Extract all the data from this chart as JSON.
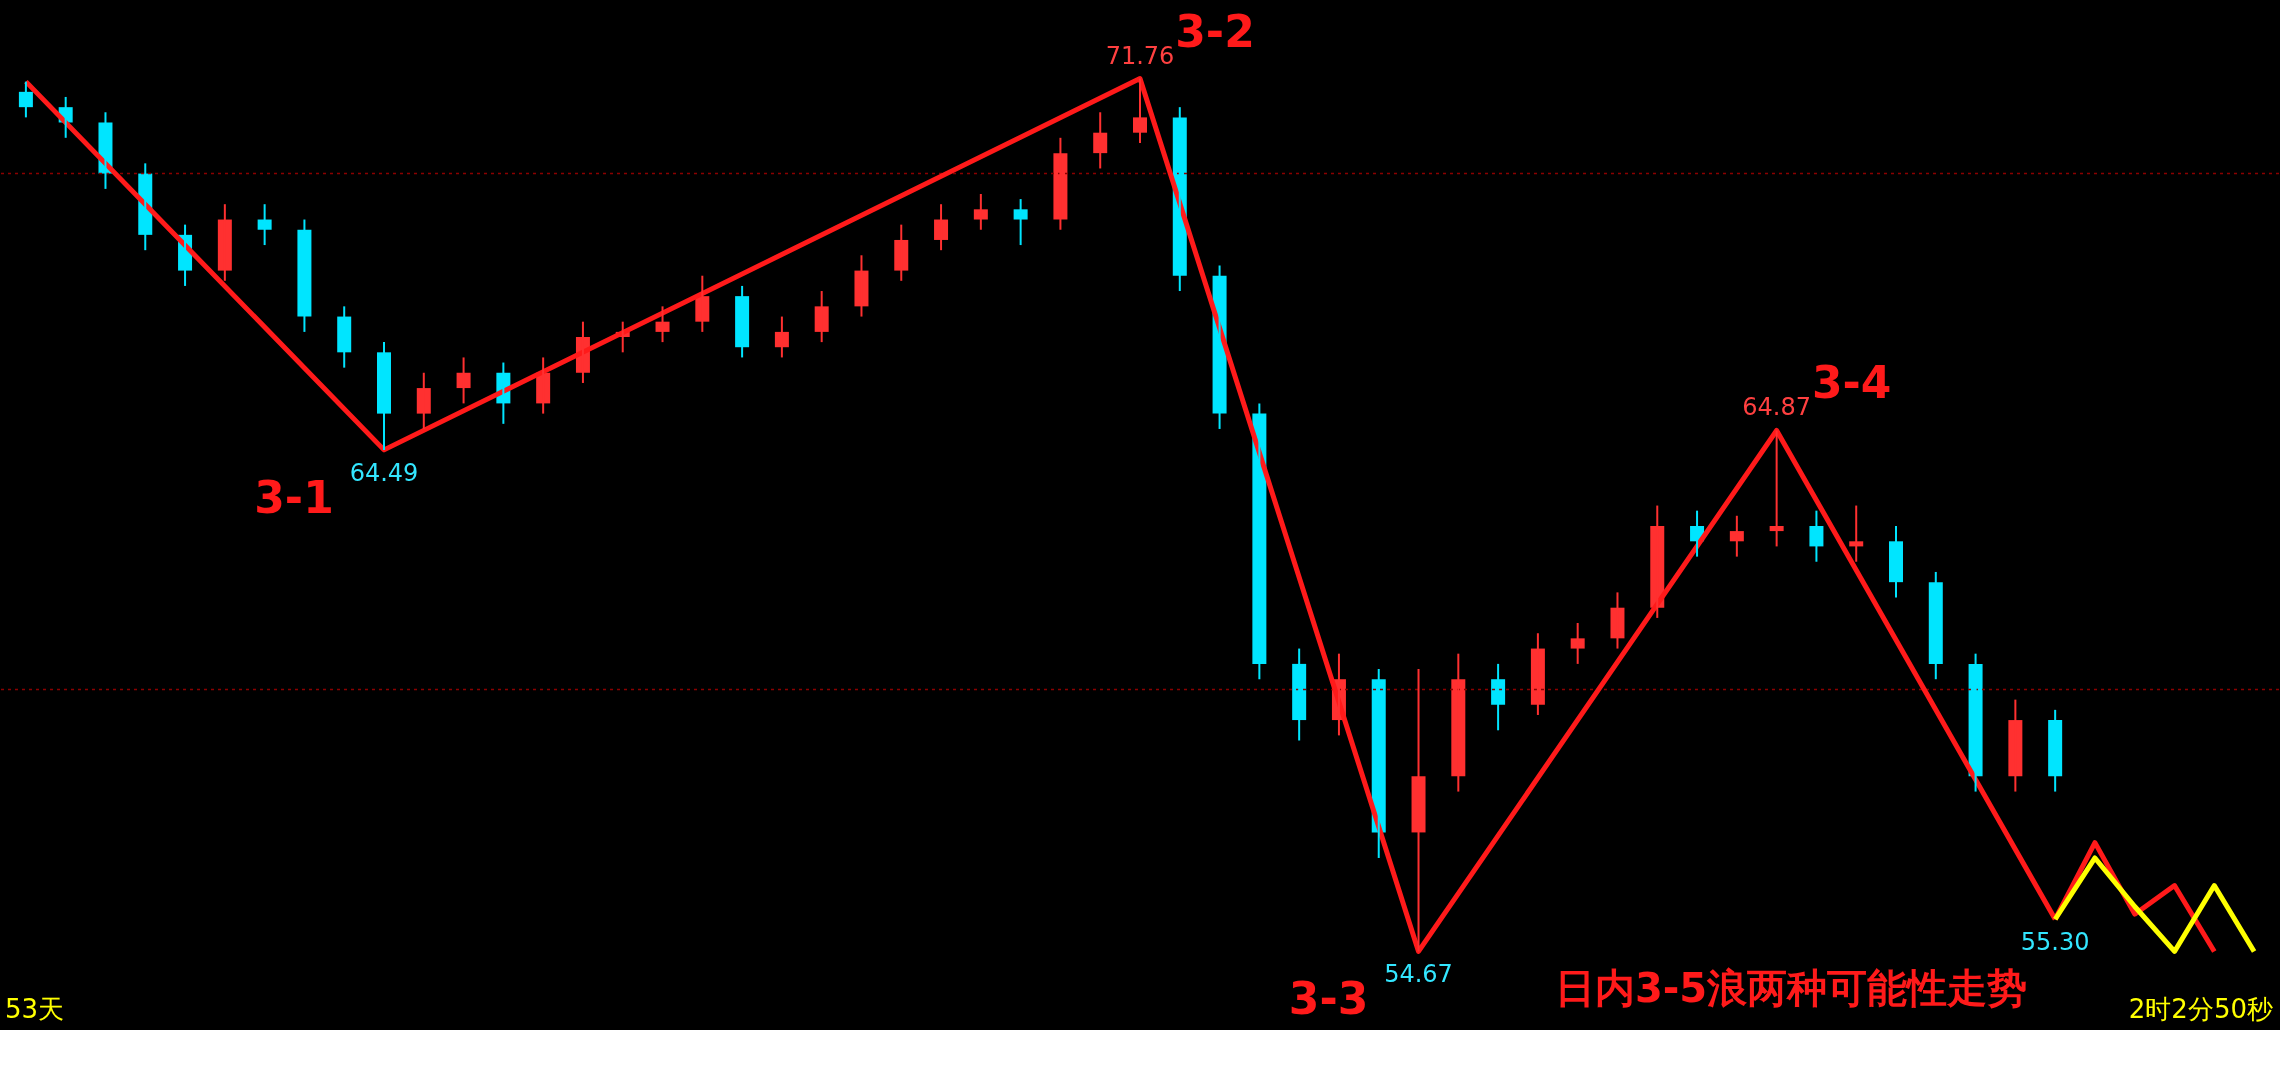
{
  "chart_data": {
    "type": "candlestick",
    "categories": [
      null,
      null,
      null,
      null,
      null,
      null,
      null,
      null,
      null,
      null,
      null,
      null,
      null,
      null,
      null,
      null,
      null,
      null,
      null,
      null,
      null,
      null,
      null,
      null,
      null,
      null,
      null,
      null,
      null,
      null,
      null,
      null,
      null,
      null,
      null,
      null,
      null,
      null,
      null,
      null,
      null,
      null,
      null,
      null,
      null,
      null,
      null,
      null,
      null,
      null,
      null,
      null,
      null,
      null,
      null,
      null,
      null
    ],
    "ohlc": [
      [
        71.5,
        71.7,
        71.0,
        71.2
      ],
      [
        71.2,
        71.4,
        70.6,
        70.9
      ],
      [
        70.9,
        71.1,
        69.6,
        69.9
      ],
      [
        69.9,
        70.1,
        68.4,
        68.7
      ],
      [
        68.7,
        68.9,
        67.7,
        68.0
      ],
      [
        68.0,
        69.3,
        67.8,
        69.0
      ],
      [
        69.0,
        69.3,
        68.5,
        68.8
      ],
      [
        68.8,
        69.0,
        66.8,
        67.1
      ],
      [
        67.1,
        67.3,
        66.1,
        66.4
      ],
      [
        66.4,
        66.6,
        64.49,
        65.2
      ],
      [
        65.2,
        66.0,
        64.9,
        65.7
      ],
      [
        65.7,
        66.3,
        65.4,
        66.0
      ],
      [
        66.0,
        66.2,
        65.0,
        65.4
      ],
      [
        65.4,
        66.3,
        65.2,
        66.0
      ],
      [
        66.0,
        67.0,
        65.8,
        66.7
      ],
      [
        66.7,
        67.0,
        66.4,
        66.8
      ],
      [
        66.8,
        67.3,
        66.6,
        67.0
      ],
      [
        67.0,
        67.9,
        66.8,
        67.5
      ],
      [
        67.5,
        67.7,
        66.3,
        66.5
      ],
      [
        66.5,
        67.1,
        66.3,
        66.8
      ],
      [
        66.8,
        67.6,
        66.6,
        67.3
      ],
      [
        67.3,
        68.3,
        67.1,
        68.0
      ],
      [
        68.0,
        68.9,
        67.8,
        68.6
      ],
      [
        68.6,
        69.3,
        68.4,
        69.0
      ],
      [
        69.0,
        69.5,
        68.8,
        69.2
      ],
      [
        69.2,
        69.4,
        68.5,
        69.0
      ],
      [
        69.0,
        70.6,
        68.8,
        70.3
      ],
      [
        70.3,
        71.1,
        70.0,
        70.7
      ],
      [
        70.7,
        71.76,
        70.5,
        71.0
      ],
      [
        71.0,
        71.2,
        67.6,
        67.9
      ],
      [
        67.9,
        68.1,
        64.9,
        65.2
      ],
      [
        65.2,
        65.4,
        60.0,
        60.3
      ],
      [
        60.3,
        60.6,
        58.8,
        59.2
      ],
      [
        59.2,
        60.5,
        58.9,
        60.0
      ],
      [
        60.0,
        60.2,
        56.5,
        57.0
      ],
      [
        57.0,
        60.2,
        54.67,
        58.1
      ],
      [
        58.1,
        60.5,
        57.8,
        60.0
      ],
      [
        60.0,
        60.3,
        59.0,
        59.5
      ],
      [
        59.5,
        60.9,
        59.3,
        60.6
      ],
      [
        60.6,
        61.1,
        60.3,
        60.8
      ],
      [
        60.8,
        61.7,
        60.6,
        61.4
      ],
      [
        61.4,
        63.4,
        61.2,
        63.0
      ],
      [
        63.0,
        63.3,
        62.4,
        62.7
      ],
      [
        62.7,
        63.2,
        62.4,
        62.9
      ],
      [
        62.9,
        64.87,
        62.6,
        63.0
      ],
      [
        63.0,
        63.3,
        62.3,
        62.6
      ],
      [
        62.6,
        63.4,
        62.3,
        62.7
      ],
      [
        62.7,
        63.0,
        61.6,
        61.9
      ],
      [
        61.9,
        62.1,
        60.0,
        60.3
      ],
      [
        60.3,
        60.5,
        57.8,
        58.1
      ],
      [
        58.1,
        59.6,
        57.8,
        59.2
      ],
      [
        59.2,
        59.4,
        57.8,
        58.1
      ],
      null,
      null,
      null,
      null,
      null
    ],
    "colors": [
      "#00e5ff",
      "#00e5ff",
      "#00e5ff",
      "#00e5ff",
      "#00e5ff",
      "#ff3030",
      "#00e5ff",
      "#00e5ff",
      "#00e5ff",
      "#00e5ff",
      "#ff3030",
      "#ff3030",
      "#00e5ff",
      "#ff3030",
      "#ff3030",
      "#ff3030",
      "#ff3030",
      "#ff3030",
      "#00e5ff",
      "#ff3030",
      "#ff3030",
      "#ff3030",
      "#ff3030",
      "#ff3030",
      "#ff3030",
      "#00e5ff",
      "#ff3030",
      "#ff3030",
      "#ff3030",
      "#00e5ff",
      "#00e5ff",
      "#00e5ff",
      "#00e5ff",
      "#ff3030",
      "#00e5ff",
      "#ff3030",
      "#ff3030",
      "#00e5ff",
      "#ff3030",
      "#ff3030",
      "#ff3030",
      "#ff3030",
      "#00e5ff",
      "#ff3030",
      "#ff3030",
      "#00e5ff",
      "#ff3030",
      "#00e5ff",
      "#00e5ff",
      "#00e5ff",
      "#ff3030",
      "#00e5ff",
      null,
      null,
      null,
      null,
      null
    ],
    "series": [
      {
        "type": "line",
        "color": "#ff1a1a",
        "values": [
          71.7,
          null,
          null,
          null,
          null,
          null,
          null,
          null,
          null,
          64.49,
          null,
          null,
          null,
          null,
          null,
          null,
          null,
          null,
          null,
          null,
          null,
          null,
          null,
          null,
          null,
          null,
          null,
          null,
          71.76,
          null,
          null,
          null,
          null,
          null,
          null,
          54.67,
          null,
          null,
          null,
          null,
          null,
          null,
          null,
          null,
          64.87,
          null,
          null,
          null,
          null,
          null,
          null,
          55.3,
          null,
          null,
          null,
          null,
          null
        ],
        "value_labels": [
          null,
          null,
          null,
          null,
          null,
          null,
          null,
          null,
          null,
          "64.49",
          null,
          null,
          null,
          null,
          null,
          null,
          null,
          null,
          null,
          null,
          null,
          null,
          null,
          null,
          null,
          null,
          null,
          null,
          "71.76",
          null,
          null,
          null,
          null,
          null,
          null,
          "54.67",
          null,
          null,
          null,
          null,
          null,
          null,
          null,
          null,
          "64.87",
          null,
          null,
          null,
          null,
          null,
          null,
          "55.30",
          null,
          null,
          null,
          null,
          null
        ]
      },
      {
        "type": "line",
        "color": "#ff1a1a",
        "values": [
          null,
          null,
          null,
          null,
          null,
          null,
          null,
          null,
          null,
          null,
          null,
          null,
          null,
          null,
          null,
          null,
          null,
          null,
          null,
          null,
          null,
          null,
          null,
          null,
          null,
          null,
          null,
          null,
          null,
          null,
          null,
          null,
          null,
          null,
          null,
          null,
          null,
          null,
          null,
          null,
          null,
          null,
          null,
          null,
          null,
          null,
          null,
          null,
          null,
          null,
          null,
          55.3,
          56.8,
          55.4,
          55.96,
          54.67,
          null
        ]
      },
      {
        "type": "line",
        "color": "#ffff00",
        "values": [
          null,
          null,
          null,
          null,
          null,
          null,
          null,
          null,
          null,
          null,
          null,
          null,
          null,
          null,
          null,
          null,
          null,
          null,
          null,
          null,
          null,
          null,
          null,
          null,
          null,
          null,
          null,
          null,
          null,
          null,
          null,
          null,
          null,
          null,
          null,
          null,
          null,
          null,
          null,
          null,
          null,
          null,
          null,
          null,
          null,
          null,
          null,
          null,
          null,
          null,
          null,
          55.3,
          56.5,
          55.55,
          54.67,
          55.96,
          54.67
        ]
      }
    ],
    "ref_lines": [
      {
        "axis": "y",
        "value": 69.9,
        "color": "#8b0000",
        "line_style": "dotted"
      },
      {
        "axis": "y",
        "value": 59.8,
        "color": "#8b0000",
        "line_style": "dotted"
      }
    ],
    "annotations": [
      "3-1",
      "3-2",
      "3-3",
      "3-4",
      "日内3-5浪两种可能性走势",
      "53天",
      "2时2分50秒"
    ],
    "tick_labels": false
  }
}
